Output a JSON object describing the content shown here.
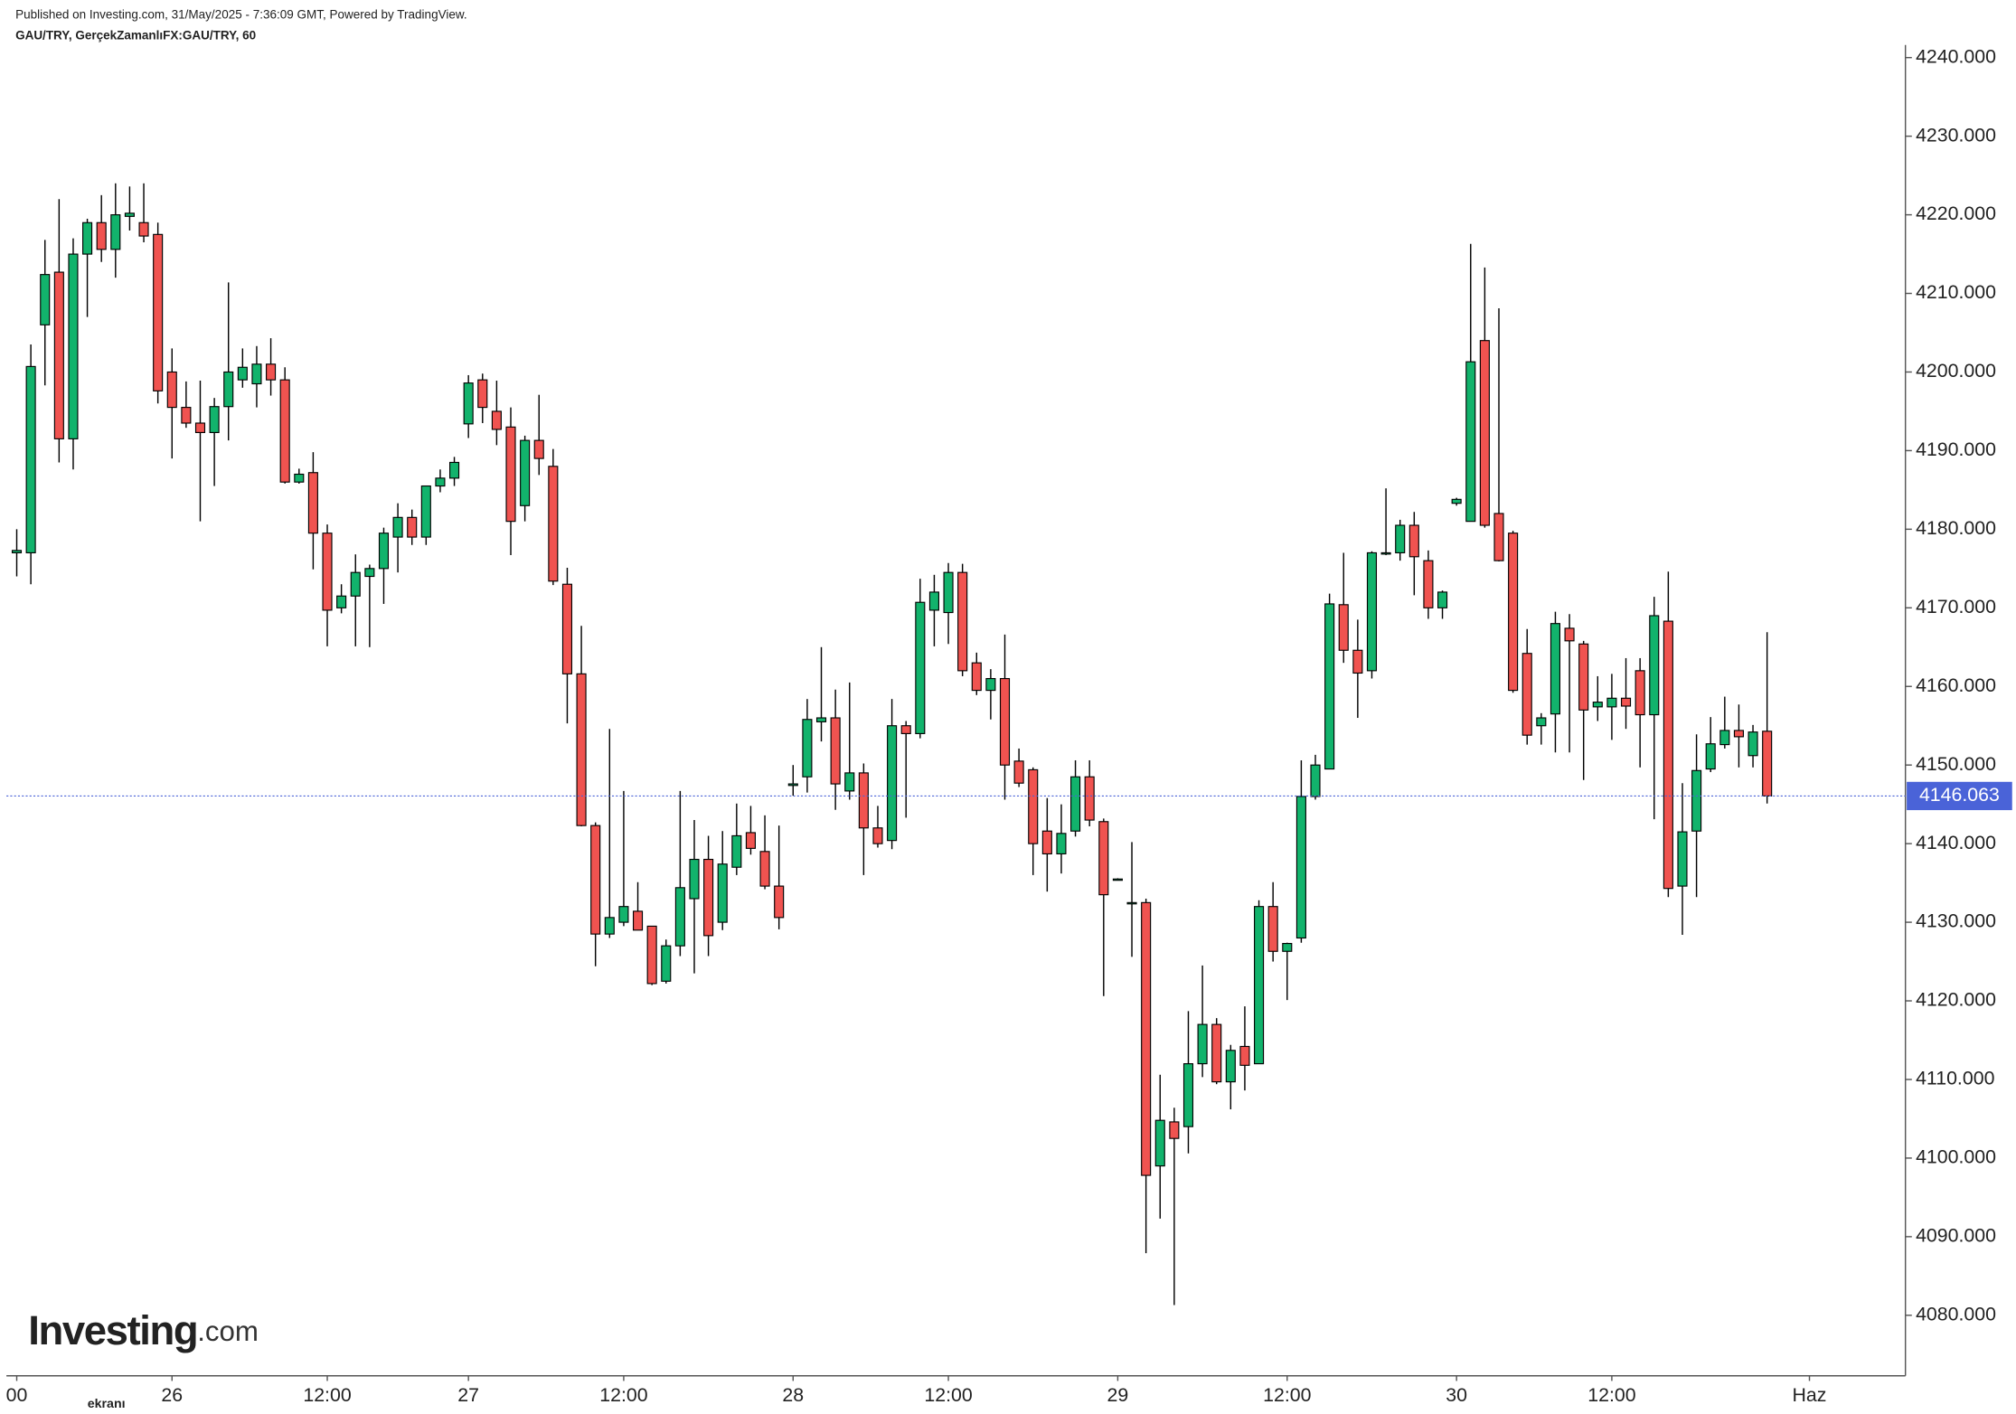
{
  "chart_data": {
    "type": "candlestick",
    "title": "Published on Investing.com, 31/May/2025 - 7:36:09 GMT, Powered by TradingView.",
    "subtitle": "GAU/TRY, GerçekZamanlıFX:GAU/TRY, 60",
    "logo": {
      "name": "Investing",
      "suffix": ".com"
    },
    "watermark": "ekranı",
    "colors": {
      "up": "#12b36c",
      "down": "#f05350",
      "outline": "#000000",
      "price_line": "#4a63d8"
    },
    "open": [
      4177,
      4177,
      4206,
      4212.7,
      4191.5,
      4215,
      4219,
      4215.6,
      4219.8,
      4219,
      4217.5,
      4200,
      4195.5,
      4193.5,
      4192.3,
      4195.6,
      4199,
      4198.5,
      4201,
      4199,
      4186,
      4187.2,
      4179.5,
      4170,
      4171.5,
      4174,
      4175,
      4179,
      4181.5,
      4179,
      4185.5,
      4186.5,
      4193.4,
      4199,
      4195,
      4193,
      4183,
      4191.3,
      4188,
      4173,
      4161.6,
      4142.3,
      4128.5,
      4130,
      4131.4,
      4129.5,
      4122.5,
      4127,
      4133,
      4138,
      4130,
      4137,
      4141.4,
      4139,
      4134.6,
      4147.4,
      4148.5,
      4155.5,
      4156,
      4146.7,
      4149,
      4142,
      4140.4,
      4155,
      4154,
      4169.7,
      4169.4,
      4174.5,
      4163,
      4159.5,
      4161,
      4150.5,
      4149.4,
      4141.6,
      4138.7,
      4141.6,
      4148.5,
      4142.8,
      4135.5,
      4132.5,
      4132.5,
      4099,
      4104.6,
      4104,
      4112,
      4117,
      4109.7,
      4114.2,
      4112,
      4132,
      4126.3,
      4128,
      4146,
      4149.5,
      4170.4,
      4164.6,
      4162,
      4177,
      4177,
      4180.5,
      4176,
      4170,
      4183.3,
      4181,
      4204,
      4182,
      4179.5,
      4164.2,
      4155,
      4156.5,
      4167.4,
      4165.4,
      4157.4,
      4157.4,
      4158.5,
      4162,
      4156.4,
      4168.3,
      4134.6,
      4141.6,
      4149.5,
      4152.6,
      4154.4,
      4151.2,
      4154.3
    ],
    "high": [
      4180,
      4203.5,
      4216.8,
      4222,
      4217,
      4219.5,
      4222.5,
      4224,
      4223.6,
      4224,
      4219,
      4203,
      4198.8,
      4198.9,
      4196.7,
      4211.4,
      4203,
      4203.3,
      4204.3,
      4200.6,
      4187.7,
      4189.8,
      4180.6,
      4173,
      4176.8,
      4175.5,
      4180.2,
      4183.3,
      4182.5,
      4185.5,
      4187.6,
      4189.2,
      4199.6,
      4199.8,
      4198.9,
      4195.5,
      4191.9,
      4197.1,
      4190.2,
      4175.1,
      4167.7,
      4142.7,
      4154.6,
      4146.7,
      4135.1,
      4129.5,
      4127.8,
      4146.7,
      4143,
      4141,
      4141.6,
      4145.1,
      4144.8,
      4143.6,
      4142.3,
      4150,
      4158.4,
      4165,
      4159.6,
      4160.5,
      4150.2,
      4144.8,
      4158.4,
      4155.6,
      4173.7,
      4174.2,
      4175.7,
      4175.6,
      4164.3,
      4162.2,
      4166.6,
      4152.1,
      4149.7,
      4145.8,
      4145,
      4150.6,
      4150.6,
      4143.2,
      4135.6,
      4140.2,
      4133,
      4110.6,
      4106.4,
      4118.7,
      4124.5,
      4117.8,
      4114.4,
      4119.3,
      4132.8,
      4135.1,
      4127.4,
      4150.6,
      4151.3,
      4171.8,
      4177,
      4168.5,
      4177.2,
      4185.2,
      4181.2,
      4182.2,
      4177.3,
      4172.2,
      4184,
      4216.3,
      4213.3,
      4208.1,
      4179.8,
      4167.3,
      4156.6,
      4169.5,
      4169.2,
      4165.8,
      4161.3,
      4161.6,
      4163.6,
      4163.6,
      4171.4,
      4174.6,
      4147.7,
      4153.9,
      4156.1,
      4158.7,
      4157.7,
      4155.1,
      4166.9
    ],
    "low": [
      4174,
      4173,
      4198.3,
      4188.5,
      4187.6,
      4207,
      4214,
      4212,
      4218,
      4216.5,
      4196,
      4189,
      4192.9,
      4181,
      4185.5,
      4191.3,
      4198,
      4195.5,
      4197,
      4185.8,
      4185.8,
      4174.9,
      4165.1,
      4169.3,
      4165.1,
      4165,
      4170.5,
      4174.5,
      4178,
      4178,
      4184.7,
      4185.5,
      4191.6,
      4193.5,
      4190.7,
      4176.7,
      4181,
      4186.9,
      4172.9,
      4155.3,
      4142.2,
      4124.4,
      4128,
      4129.5,
      4129,
      4122,
      4122.2,
      4125.7,
      4123.5,
      4125.7,
      4129,
      4136,
      4138.6,
      4134.2,
      4129.1,
      4146.1,
      4146.5,
      4153,
      4144.3,
      4145.6,
      4136,
      4139.5,
      4139.3,
      4143.3,
      4153.4,
      4165.1,
      4165.4,
      4161.3,
      4158.9,
      4155.8,
      4145.6,
      4147.2,
      4136,
      4133.9,
      4136.2,
      4140.9,
      4142.2,
      4120.6,
      4135.4,
      4125.6,
      4087.9,
      4092.3,
      4081.3,
      4100.6,
      4110.3,
      4109.4,
      4106.2,
      4108.6,
      4112,
      4125,
      4120.1,
      4127.4,
      4145.6,
      4149.5,
      4163,
      4156,
      4161,
      4176.7,
      4176,
      4171.6,
      4168.6,
      4168.6,
      4183,
      4181,
      4180.2,
      4175.9,
      4159.2,
      4152.6,
      4152.6,
      4151.6,
      4151.6,
      4148.1,
      4155.6,
      4153.2,
      4154.6,
      4149.7,
      4143.1,
      4133.2,
      4128.4,
      4133.2,
      4149.1,
      4152.1,
      4149.7,
      4149.7,
      4145.1
    ],
    "close": [
      4177.3,
      4200.7,
      4212.4,
      4191.5,
      4215,
      4219,
      4215.6,
      4220,
      4220.2,
      4217.3,
      4197.6,
      4195.5,
      4193.5,
      4192.3,
      4195.6,
      4200,
      4200.6,
      4201,
      4199,
      4186,
      4187,
      4179.5,
      4169.7,
      4171.5,
      4174.5,
      4175,
      4179.5,
      4181.5,
      4179,
      4185.5,
      4186.5,
      4188.5,
      4198.6,
      4195.5,
      4192.7,
      4181,
      4191.3,
      4189,
      4173.4,
      4161.6,
      4142.3,
      4128.5,
      4130.6,
      4132,
      4129,
      4122.2,
      4127,
      4134.4,
      4138,
      4128.3,
      4137.4,
      4141,
      4139.4,
      4134.6,
      4130.6,
      4147.6,
      4155.8,
      4156,
      4147.6,
      4149,
      4142,
      4140,
      4155,
      4154,
      4170.7,
      4172,
      4174.5,
      4162,
      4159.5,
      4161,
      4150,
      4147.7,
      4140,
      4138.7,
      4141.3,
      4148.5,
      4143,
      4133.5,
      4135.5,
      4132.5,
      4097.8,
      4104.8,
      4102.5,
      4112,
      4117,
      4109.7,
      4113.7,
      4111.8,
      4132,
      4126.3,
      4127.3,
      4146,
      4150,
      4170.5,
      4164.6,
      4161.7,
      4177,
      4177,
      4180.5,
      4176.5,
      4170,
      4172,
      4183.8,
      4201.3,
      4180.5,
      4176,
      4159.5,
      4153.8,
      4156,
      4168,
      4165.8,
      4157,
      4158,
      4158.5,
      4157.5,
      4156.4,
      4169,
      4134.3,
      4141.5,
      4149.3,
      4152.7,
      4154.4,
      4153.6,
      4154.2,
      4146.063
    ],
    "last_price": {
      "value": 4146.063,
      "label": "4146.063"
    },
    "xlim": [
      -0.73,
      133.8
    ],
    "xticks": [
      {
        "value": 0,
        "label": "00"
      },
      {
        "value": 11,
        "label": "26"
      },
      {
        "value": 22,
        "label": "12:00"
      },
      {
        "value": 32,
        "label": "27"
      },
      {
        "value": 43,
        "label": "12:00"
      },
      {
        "value": 55,
        "label": "28"
      },
      {
        "value": 66,
        "label": "12:00"
      },
      {
        "value": 78,
        "label": "29"
      },
      {
        "value": 90,
        "label": "12:00"
      },
      {
        "value": 102,
        "label": "30"
      },
      {
        "value": 113,
        "label": "12:00"
      },
      {
        "value": 127,
        "label": "Haz"
      }
    ],
    "ylim": [
      4072.3,
      4241.6
    ],
    "yticks": [
      {
        "value": 4080,
        "label": "4080.000"
      },
      {
        "value": 4090,
        "label": "4090.000"
      },
      {
        "value": 4100,
        "label": "4100.000"
      },
      {
        "value": 4110,
        "label": "4110.000"
      },
      {
        "value": 4120,
        "label": "4120.000"
      },
      {
        "value": 4130,
        "label": "4130.000"
      },
      {
        "value": 4140,
        "label": "4140.000"
      },
      {
        "value": 4150,
        "label": "4150.000"
      },
      {
        "value": 4160,
        "label": "4160.000"
      },
      {
        "value": 4170,
        "label": "4170.000"
      },
      {
        "value": 4180,
        "label": "4180.000"
      },
      {
        "value": 4190,
        "label": "4190.000"
      },
      {
        "value": 4200,
        "label": "4200.000"
      },
      {
        "value": 4210,
        "label": "4210.000"
      },
      {
        "value": 4220,
        "label": "4220.000"
      },
      {
        "value": 4230,
        "label": "4230.000"
      },
      {
        "value": 4240,
        "label": "4240.000"
      }
    ],
    "grid": false
  }
}
